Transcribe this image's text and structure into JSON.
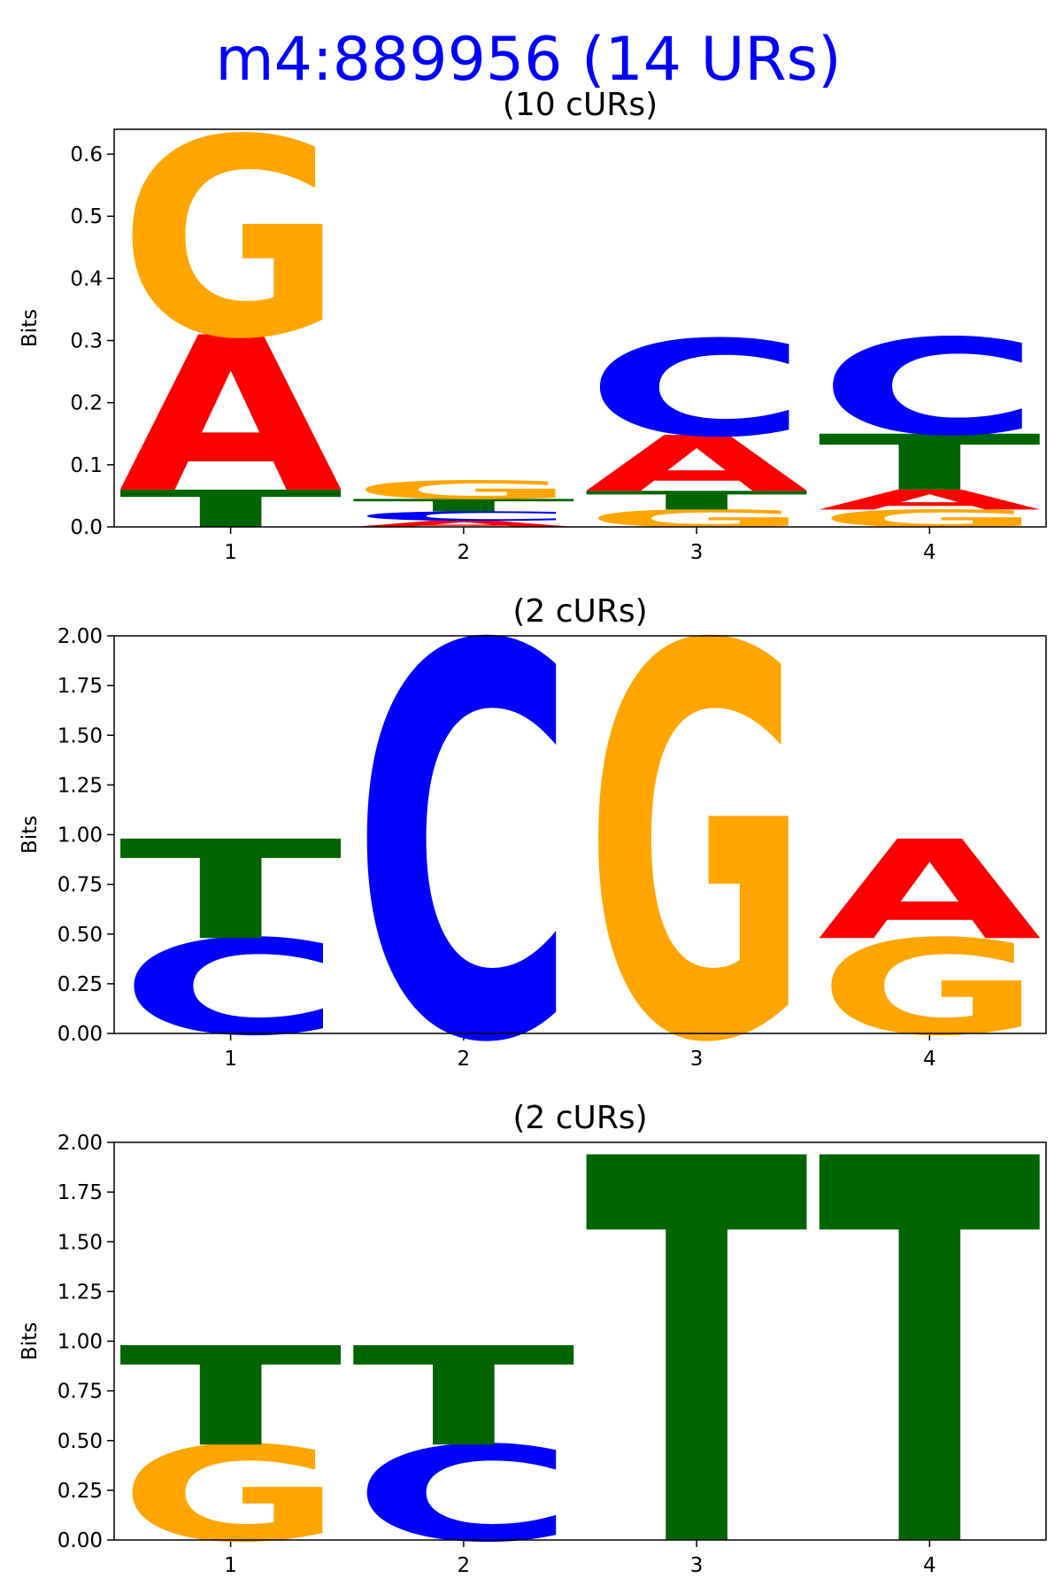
{
  "title": "m4:889956 (14 URs)",
  "chart_data": [
    {
      "type": "logo",
      "title": "(10 cURs)",
      "y_label": "Bits",
      "x": [
        1,
        2,
        3,
        4
      ],
      "xlim": [
        0.5,
        4.5
      ],
      "xticks": [
        1,
        2,
        3,
        4
      ],
      "ylim": [
        0,
        0.64
      ],
      "yticks": [
        {
          "value": 0,
          "label": "0.0"
        },
        {
          "value": 0.1,
          "label": "0.1"
        },
        {
          "value": 0.2,
          "label": "0.2"
        },
        {
          "value": 0.3,
          "label": "0.3"
        },
        {
          "value": 0.4,
          "label": "0.4"
        },
        {
          "value": 0.5,
          "label": "0.5"
        },
        {
          "value": 0.6,
          "label": "0.6"
        }
      ],
      "series": [
        {
          "name": "A",
          "color": "#ff0000",
          "values": [
            0.25,
            0.01,
            0.09,
            0.032
          ]
        },
        {
          "name": "C",
          "color": "#0000ff",
          "values": [
            0,
            0.015,
            0.155,
            0.155
          ]
        },
        {
          "name": "G",
          "color": "#ffa500",
          "values": [
            0.32,
            0.03,
            0.028,
            0.028
          ]
        },
        {
          "name": "T",
          "color": "#006400",
          "values": [
            0.06,
            0.02,
            0.03,
            0.09
          ]
        }
      ]
    },
    {
      "type": "logo",
      "title": "(2 cURs)",
      "y_label": "Bits",
      "x": [
        1,
        2,
        3,
        4
      ],
      "xlim": [
        0.5,
        4.5
      ],
      "xticks": [
        1,
        2,
        3,
        4
      ],
      "ylim": [
        0,
        2
      ],
      "yticks": [
        {
          "value": 0,
          "label": "0.00"
        },
        {
          "value": 0.25,
          "label": "0.25"
        },
        {
          "value": 0.5,
          "label": "0.50"
        },
        {
          "value": 0.75,
          "label": "0.75"
        },
        {
          "value": 1,
          "label": "1.00"
        },
        {
          "value": 1.25,
          "label": "1.25"
        },
        {
          "value": 1.5,
          "label": "1.50"
        },
        {
          "value": 1.75,
          "label": "1.75"
        },
        {
          "value": 2,
          "label": "2.00"
        }
      ],
      "series": [
        {
          "name": "A",
          "color": "#ff0000",
          "values": [
            0,
            0,
            0,
            0.5
          ]
        },
        {
          "name": "C",
          "color": "#0000ff",
          "values": [
            0.48,
            1.97,
            0,
            0
          ]
        },
        {
          "name": "G",
          "color": "#ffa500",
          "values": [
            0,
            0,
            1.97,
            0.48
          ]
        },
        {
          "name": "T",
          "color": "#006400",
          "values": [
            0.5,
            0,
            0,
            0
          ]
        }
      ]
    },
    {
      "type": "logo",
      "title": "(2 cURs)",
      "y_label": "Bits",
      "x": [
        1,
        2,
        3,
        4
      ],
      "xlim": [
        0.5,
        4.5
      ],
      "xticks": [
        1,
        2,
        3,
        4
      ],
      "ylim": [
        0,
        2
      ],
      "yticks": [
        {
          "value": 0,
          "label": "0.00"
        },
        {
          "value": 0.25,
          "label": "0.25"
        },
        {
          "value": 0.5,
          "label": "0.50"
        },
        {
          "value": 0.75,
          "label": "0.75"
        },
        {
          "value": 1,
          "label": "1.00"
        },
        {
          "value": 1.25,
          "label": "1.25"
        },
        {
          "value": 1.5,
          "label": "1.50"
        },
        {
          "value": 1.75,
          "label": "1.75"
        },
        {
          "value": 2,
          "label": "2.00"
        }
      ],
      "series": [
        {
          "name": "A",
          "color": "#ff0000",
          "values": [
            0,
            0,
            0,
            0
          ]
        },
        {
          "name": "C",
          "color": "#0000ff",
          "values": [
            0,
            0.48,
            0,
            0
          ]
        },
        {
          "name": "G",
          "color": "#ffa500",
          "values": [
            0.48,
            0,
            0,
            0
          ]
        },
        {
          "name": "T",
          "color": "#006400",
          "values": [
            0.5,
            0.5,
            1.94,
            1.94
          ]
        }
      ]
    }
  ]
}
